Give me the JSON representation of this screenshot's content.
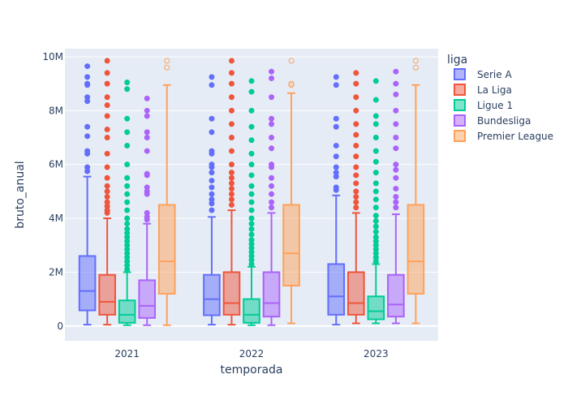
{
  "chart_data": {
    "type": "box",
    "xlabel": "temporada",
    "ylabel": "bruto_anual",
    "categories": [
      "2021",
      "2022",
      "2023"
    ],
    "ylim": [
      -550000,
      10300000
    ],
    "yticks": [
      0,
      2000000,
      4000000,
      6000000,
      8000000,
      10000000
    ],
    "ytick_labels": [
      "0",
      "2M",
      "4M",
      "6M",
      "8M",
      "10M"
    ],
    "grid": true,
    "legend": {
      "title": "liga",
      "position": "right"
    },
    "series": [
      {
        "name": "Serie A",
        "color": "#636efa",
        "boxes": [
          {
            "min": 50000,
            "q1": 580000,
            "median": 1300000,
            "q3": 2600000,
            "max": 5550000,
            "outliers": [
              5750000,
              5900000,
              6400000,
              6500000,
              7050000,
              7400000,
              8350000,
              8500000,
              8950000,
              9000000,
              9250000,
              9650000
            ]
          },
          {
            "min": 50000,
            "q1": 400000,
            "median": 1000000,
            "q3": 1900000,
            "max": 4050000,
            "outliers": [
              4300000,
              4550000,
              4700000,
              4900000,
              5150000,
              5400000,
              5700000,
              5900000,
              6000000,
              6400000,
              6500000,
              7200000,
              7700000,
              8950000,
              9250000
            ]
          },
          {
            "min": 50000,
            "q1": 420000,
            "median": 1100000,
            "q3": 2300000,
            "max": 4850000,
            "outliers": [
              5050000,
              5150000,
              5550000,
              5700000,
              5900000,
              6300000,
              6700000,
              7400000,
              7700000,
              8950000,
              9250000
            ]
          }
        ]
      },
      {
        "name": "La Liga",
        "color": "#ef553b",
        "boxes": [
          {
            "min": 50000,
            "q1": 420000,
            "median": 900000,
            "q3": 1900000,
            "max": 4000000,
            "outliers": [
              4200000,
              4300000,
              4450000,
              4600000,
              4800000,
              5000000,
              5200000,
              5500000,
              5900000,
              6400000,
              7000000,
              7300000,
              7800000,
              8200000,
              8500000,
              9000000,
              9400000,
              9850000
            ]
          },
          {
            "min": 50000,
            "q1": 420000,
            "median": 850000,
            "q3": 2000000,
            "max": 4300000,
            "outliers": [
              4500000,
              4700000,
              4900000,
              5100000,
              5300000,
              5500000,
              5700000,
              6000000,
              6500000,
              7000000,
              7500000,
              8000000,
              8500000,
              9000000,
              9400000,
              9850000
            ]
          },
          {
            "min": 100000,
            "q1": 420000,
            "median": 850000,
            "q3": 2000000,
            "max": 4200000,
            "outliers": [
              4400000,
              4600000,
              4800000,
              5000000,
              5300000,
              5600000,
              5900000,
              6300000,
              6700000,
              7100000,
              7500000,
              8000000,
              8500000,
              9000000,
              9400000
            ]
          }
        ]
      },
      {
        "name": "Ligue 1",
        "color": "#00cc96",
        "boxes": [
          {
            "min": 30000,
            "q1": 120000,
            "median": 420000,
            "q3": 950000,
            "max": 2000000,
            "outliers": [
              2100000,
              2250000,
              2400000,
              2550000,
              2700000,
              2850000,
              3000000,
              3150000,
              3300000,
              3450000,
              3600000,
              3800000,
              4000000,
              4300000,
              4600000,
              4900000,
              5200000,
              5500000,
              6000000,
              6700000,
              7200000,
              7700000,
              8800000,
              9050000
            ]
          },
          {
            "min": 30000,
            "q1": 120000,
            "median": 420000,
            "q3": 1000000,
            "max": 2200000,
            "outliers": [
              2300000,
              2450000,
              2600000,
              2750000,
              2900000,
              3050000,
              3200000,
              3400000,
              3600000,
              3800000,
              4000000,
              4300000,
              4600000,
              4900000,
              5200000,
              5600000,
              6000000,
              6400000,
              6900000,
              7400000,
              8000000,
              8700000,
              9100000
            ]
          },
          {
            "min": 100000,
            "q1": 250000,
            "median": 550000,
            "q3": 1100000,
            "max": 2300000,
            "outliers": [
              2400000,
              2550000,
              2700000,
              2850000,
              3000000,
              3150000,
              3300000,
              3500000,
              3700000,
              3900000,
              4100000,
              4400000,
              4700000,
              5000000,
              5300000,
              5700000,
              6100000,
              6500000,
              7000000,
              7500000,
              7800000,
              8400000,
              9100000
            ]
          }
        ]
      },
      {
        "name": "Bundesliga",
        "color": "#ab63fa",
        "boxes": [
          {
            "min": 30000,
            "q1": 300000,
            "median": 750000,
            "q3": 1700000,
            "max": 3800000,
            "outliers": [
              3950000,
              4050000,
              4200000,
              4900000,
              5000000,
              5150000,
              5600000,
              5650000,
              6500000,
              7000000,
              7200000,
              7800000,
              8000000,
              8450000
            ]
          },
          {
            "min": 30000,
            "q1": 350000,
            "median": 850000,
            "q3": 2000000,
            "max": 4200000,
            "outliers": [
              4400000,
              4600000,
              4900000,
              5200000,
              5500000,
              5900000,
              6000000,
              6600000,
              7000000,
              7500000,
              7700000,
              8500000,
              9200000,
              9450000
            ]
          },
          {
            "min": 100000,
            "q1": 350000,
            "median": 800000,
            "q3": 1900000,
            "max": 4150000,
            "outliers": [
              4400000,
              4600000,
              4800000,
              5100000,
              5500000,
              5800000,
              6000000,
              6600000,
              7000000,
              7500000,
              8000000,
              8600000,
              9000000,
              9450000
            ]
          }
        ]
      },
      {
        "name": "Premier League",
        "color": "#ffa15a",
        "boxes": [
          {
            "min": 30000,
            "q1": 1200000,
            "median": 2400000,
            "q3": 4500000,
            "max": 8950000,
            "outliers": [
              9600000,
              9850000
            ]
          },
          {
            "min": 100000,
            "q1": 1500000,
            "median": 2700000,
            "q3": 4500000,
            "max": 8650000,
            "outliers": [
              8950000,
              9000000,
              9850000
            ]
          },
          {
            "min": 100000,
            "q1": 1200000,
            "median": 2400000,
            "q3": 4500000,
            "max": 8950000,
            "outliers": [
              9600000,
              9850000
            ]
          }
        ]
      }
    ]
  }
}
